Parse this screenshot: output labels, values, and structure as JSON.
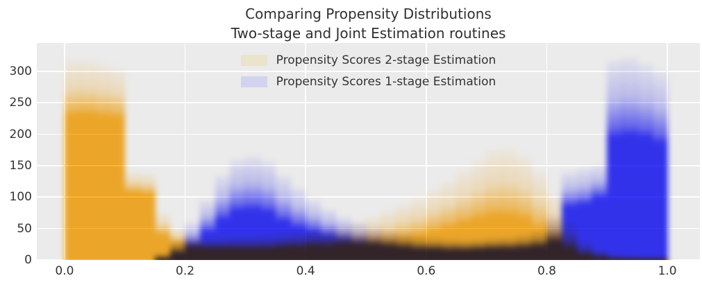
{
  "title": {
    "line1": "Comparing Propensity Distributions",
    "line2": "Two-stage and Joint Estimation routines"
  },
  "legend": {
    "items": [
      {
        "label": "Propensity Scores 2-stage Estimation",
        "swatch_color": "#ece3cd"
      },
      {
        "label": "Propensity Scores 1-stage Estimation",
        "swatch_color": "#d2d3ee"
      }
    ]
  },
  "colors": {
    "plot_background": "#ebebeb",
    "grid": "#ffffff",
    "text": "#333333",
    "series_2stage_core": "#ffb42c",
    "series_1stage_core": "#3636ff"
  },
  "chart_data": {
    "type": "bar",
    "subtype": "overlaid-bootstrap-histograms",
    "title": "Comparing Propensity Distributions\nTwo-stage and Joint Estimation routines",
    "xlabel": "",
    "ylabel": "",
    "grid": true,
    "legend_position": "upper center",
    "xlim": [
      -0.046,
      1.054
    ],
    "ylim": [
      0,
      345
    ],
    "x_ticks": [
      0.0,
      0.2,
      0.4,
      0.6,
      0.8,
      1.0
    ],
    "x_tick_labels": [
      "0.0",
      "0.2",
      "0.4",
      "0.6",
      "0.8",
      "1.0"
    ],
    "y_ticks": [
      0,
      50,
      100,
      150,
      200,
      250,
      300
    ],
    "y_tick_labels": [
      "0",
      "50",
      "100",
      "150",
      "200",
      "250",
      "300"
    ],
    "bin_start": 0.0,
    "bin_width": 0.025,
    "n_bins": 40,
    "note": "Each series is many translucent histogram replicates overlaid; counts_core = height of the saturated core reached by nearly all replicates, counts_max = faint upper envelope height, per 0.025-wide bin from 0.0 to 1.0.",
    "series": [
      {
        "name": "Propensity Scores 2-stage Estimation",
        "color": "#ffb42c",
        "counts_core": [
          230,
          232,
          228,
          225,
          108,
          105,
          40,
          28,
          20,
          18,
          18,
          18,
          18,
          18,
          20,
          20,
          22,
          22,
          24,
          25,
          28,
          30,
          34,
          38,
          45,
          52,
          58,
          65,
          70,
          70,
          64,
          50,
          35,
          18,
          8,
          4,
          2,
          1,
          1,
          1
        ],
        "counts_max": [
          318,
          318,
          312,
          305,
          140,
          138,
          75,
          50,
          38,
          35,
          35,
          38,
          38,
          40,
          42,
          45,
          48,
          50,
          55,
          60,
          68,
          78,
          88,
          98,
          112,
          125,
          142,
          160,
          175,
          178,
          165,
          140,
          105,
          60,
          30,
          15,
          8,
          5,
          4,
          4
        ]
      },
      {
        "name": "Propensity Scores 1-stage Estimation",
        "color": "#3636ff",
        "counts_core": [
          0,
          0,
          0,
          0,
          0,
          0,
          3,
          12,
          25,
          45,
          65,
          78,
          80,
          76,
          62,
          52,
          45,
          38,
          32,
          28,
          25,
          22,
          20,
          18,
          17,
          16,
          16,
          17,
          18,
          18,
          20,
          22,
          30,
          85,
          88,
          100,
          195,
          198,
          195,
          185
        ],
        "counts_max": [
          0,
          0,
          0,
          0,
          0,
          0,
          10,
          30,
          60,
          95,
          135,
          160,
          165,
          158,
          135,
          115,
          95,
          80,
          68,
          60,
          52,
          46,
          42,
          38,
          35,
          33,
          32,
          33,
          35,
          36,
          40,
          45,
          70,
          140,
          145,
          150,
          318,
          322,
          312,
          300
        ]
      }
    ]
  }
}
